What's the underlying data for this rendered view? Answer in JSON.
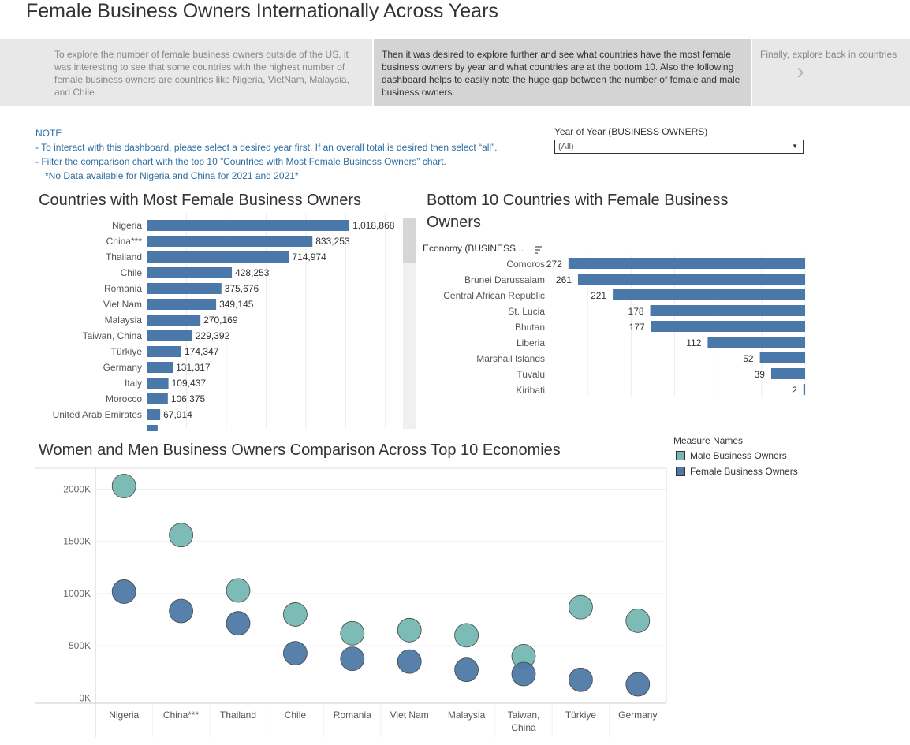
{
  "dashboard": {
    "title": "Female Business Owners Internationally Across Years"
  },
  "story": {
    "cards": [
      "To explore the number of female business owners outside of the US, it was interesting to see that some countries with the highest number of female business owners are countries like Nigeria, VietNam, Malaysia, and Chile.",
      "Then it was desired to explore further and see what countries have the most female business owners by year and what countries are at the bottom 10. Also the following dashboard helps to easily note the huge gap between the number of female and male business owners.",
      "Finally, explore back in countries"
    ],
    "prev_icon": "chevron-left-icon",
    "next_icon": "chevron-right-icon"
  },
  "note": {
    "heading": "NOTE",
    "line1": "- To interact with this dashboard, please select a desired year first. If an overall total is desired then select “all”.",
    "line2": "- Filter the comparison chart with the top 10 ”Countries with Most Female Business Owners” chart.",
    "line3": "*No Data available for Nigeria and China for 2021 and 2021*"
  },
  "filter": {
    "label": "Year of Year (BUSINESS OWNERS)",
    "value": "(All)"
  },
  "colors": {
    "female": "#4e79a7",
    "male": "#76b7b2",
    "bar": "#4a78a8",
    "note": "#2f6ea1"
  },
  "chart_data": [
    {
      "type": "bar",
      "title": "Countries with Most Female Business Owners",
      "categories": [
        "Nigeria",
        "China***",
        "Thailand",
        "Chile",
        "Romania",
        "Viet Nam",
        "Malaysia",
        "Taiwan, China",
        "Türkiye",
        "Germany",
        "Italy",
        "Morocco",
        "United Arab Emirates"
      ],
      "values": [
        1018868,
        833253,
        714974,
        428253,
        375676,
        349145,
        270169,
        229392,
        174347,
        131317,
        109437,
        106375,
        67914
      ],
      "labels": [
        "1,018,868",
        "833,253",
        "714,974",
        "428,253",
        "375,676",
        "349,145",
        "270,169",
        "229,392",
        "174,347",
        "131,317",
        "109,437",
        "106,375",
        "67,914"
      ],
      "xlim": [
        0,
        1300000
      ],
      "grid": true
    },
    {
      "type": "bar",
      "title": "Bottom 10 Countries with Female Business Owners",
      "axis_header": "Economy (BUSINESS ..",
      "categories": [
        "Comoros",
        "Brunei Darussalam",
        "Central African Republic",
        "St. Lucia",
        "Bhutan",
        "Liberia",
        "Marshall Islands",
        "Tuvalu",
        "Kiribati"
      ],
      "values": [
        272,
        261,
        221,
        178,
        177,
        112,
        52,
        39,
        2
      ],
      "xlim": [
        0,
        280
      ],
      "reversed": true,
      "grid": true
    },
    {
      "type": "scatter",
      "title": "Women and Men Business Owners Comparison Across Top 10 Economies",
      "categories": [
        "Nigeria",
        "China***",
        "Thailand",
        "Chile",
        "Romania",
        "Viet Nam",
        "Malaysia",
        "Taiwan, China",
        "Türkiye",
        "Germany"
      ],
      "series": [
        {
          "name": "Male Business Owners",
          "values": [
            2030000,
            1560000,
            1030000,
            800000,
            620000,
            650000,
            600000,
            400000,
            870000,
            740000
          ]
        },
        {
          "name": "Female Business Owners",
          "values": [
            1018868,
            833253,
            714974,
            428253,
            375676,
            349145,
            270169,
            229392,
            174347,
            131317
          ]
        }
      ],
      "yticks": [
        "2000K",
        "1500K",
        "1000K",
        "500K",
        "0K"
      ],
      "ylim": [
        -50000,
        2200000
      ],
      "grid": true,
      "legend_title": "Measure Names",
      "legend_position": "top-right"
    }
  ]
}
